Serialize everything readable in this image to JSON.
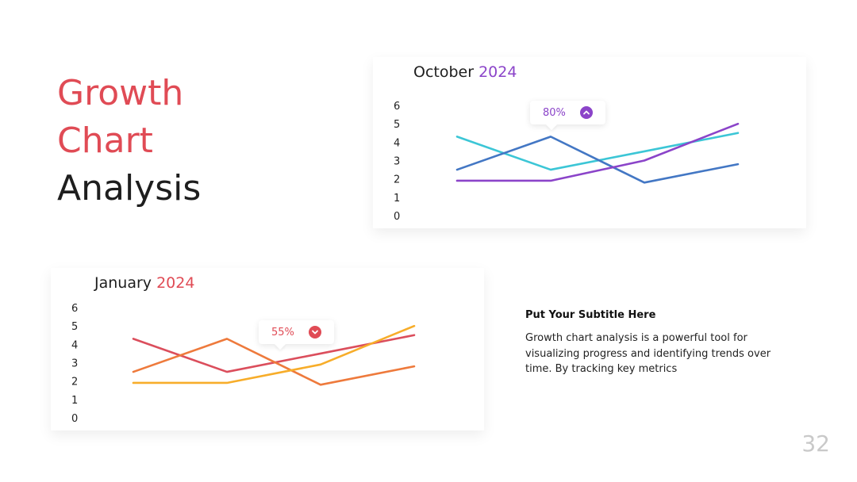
{
  "title": {
    "line1": "Growth",
    "line2": "Chart",
    "line3": "Analysis"
  },
  "subtitle": "Put Your Subtitle Here",
  "body": "Growth chart analysis is a powerful tool for visualizing progress and identifying trends over time. By tracking key metrics",
  "page_number": "32",
  "colors": {
    "accent_red": "#e04b55",
    "accent_purple": "#8b44c9",
    "teal": "#3cc6d6",
    "blue": "#4377c4",
    "purple": "#8b44c9",
    "red": "#db4e5c",
    "orange": "#ee7a3c",
    "yellow": "#f7ad2a"
  },
  "chart_data": [
    {
      "type": "line",
      "title": "October 2024",
      "title_month": "October",
      "title_year": "2024",
      "x": [
        1,
        2,
        3,
        4
      ],
      "ylim": [
        0,
        6
      ],
      "yticks": [
        "0",
        "1",
        "2",
        "3",
        "4",
        "5",
        "6"
      ],
      "grid": false,
      "series": [
        {
          "values": [
            4.3,
            2.5,
            3.5,
            4.5
          ],
          "color": "#3cc6d6"
        },
        {
          "values": [
            2.5,
            4.3,
            1.8,
            2.8
          ],
          "color": "#4377c4"
        },
        {
          "values": [
            1.9,
            1.9,
            3.0,
            5.0
          ],
          "color": "#8b44c9"
        }
      ],
      "annotation": {
        "text": "80%",
        "icon": "chevron-up-icon"
      }
    },
    {
      "type": "line",
      "title": "January 2024",
      "title_month": "January",
      "title_year": "2024",
      "x": [
        1,
        2,
        3,
        4
      ],
      "ylim": [
        0,
        6
      ],
      "yticks": [
        "0",
        "1",
        "2",
        "3",
        "4",
        "5",
        "6"
      ],
      "grid": false,
      "series": [
        {
          "values": [
            4.3,
            2.5,
            3.5,
            4.5
          ],
          "color": "#db4e5c"
        },
        {
          "values": [
            2.5,
            4.3,
            1.8,
            2.8
          ],
          "color": "#ee7a3c"
        },
        {
          "values": [
            1.9,
            1.9,
            2.9,
            5.0
          ],
          "color": "#f7ad2a"
        }
      ],
      "annotation": {
        "text": "55%",
        "icon": "chevron-down-icon"
      }
    }
  ]
}
